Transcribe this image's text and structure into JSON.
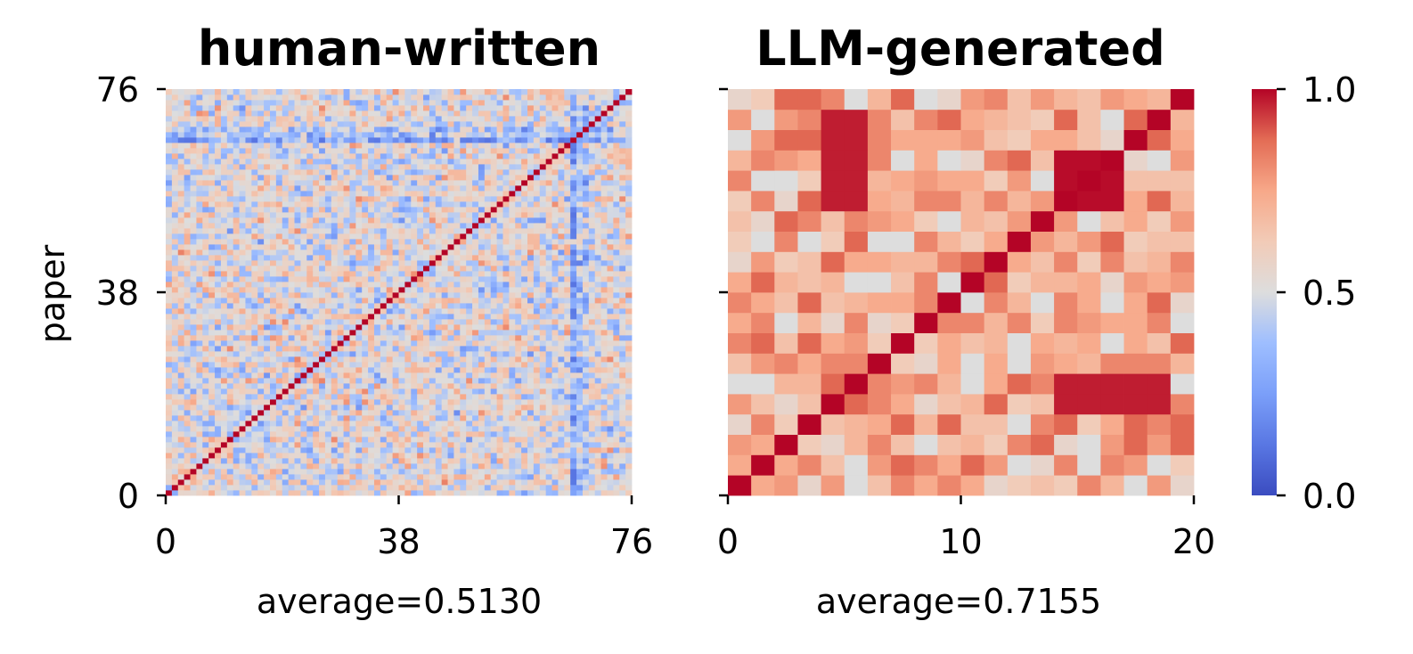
{
  "chart_data": [
    {
      "type": "heatmap",
      "title": "human-written",
      "xlabel": "average=0.5130",
      "ylabel": "paper",
      "n": 76,
      "xticks": [
        0,
        38,
        76
      ],
      "yticks": [
        0,
        38,
        76
      ],
      "diagonal_value": 1.0,
      "average": 0.513,
      "low_similarity_rows": [
        66
      ],
      "low_similarity_cols": [
        66,
        67,
        68
      ]
    },
    {
      "type": "heatmap",
      "title": "LLM-generated",
      "xlabel": "average=0.7155",
      "ylabel": "",
      "n": 20,
      "xticks": [
        0,
        10,
        20
      ],
      "yticks": [
        0,
        10,
        20
      ],
      "diagonal_value": 1.0,
      "average": 0.7155,
      "high_similarity_blocks": [
        {
          "rows": [
            14,
            16
          ],
          "cols": [
            14,
            16
          ],
          "value": 0.99
        },
        {
          "rows": [
            15,
            18
          ],
          "cols": [
            4,
            5
          ],
          "value": 0.97
        },
        {
          "rows": [
            4,
            5
          ],
          "cols": [
            14,
            16
          ],
          "value": 0.97
        }
      ]
    }
  ],
  "colorbar": {
    "colormap": "coolwarm",
    "min": 0.0,
    "max": 1.0,
    "ticks": [
      "0.0",
      "0.5",
      "1.0"
    ],
    "colors": {
      "low": "#3b4cc0",
      "mid": "#dddddd",
      "high": "#b40426"
    }
  }
}
